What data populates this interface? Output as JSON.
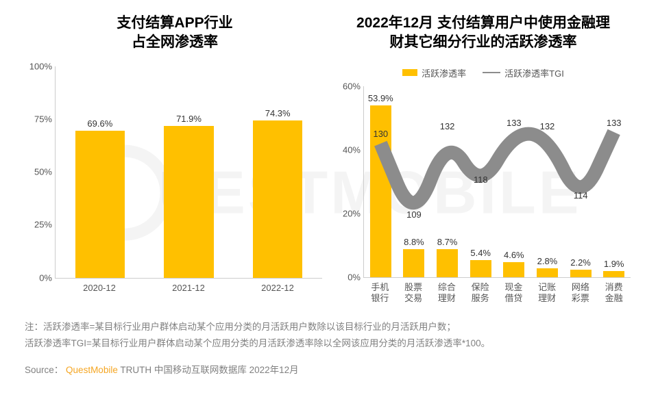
{
  "watermark": {
    "text": "UESTMOBILE"
  },
  "left_chart": {
    "type": "bar",
    "title": "支付结算APP行业\n占全网渗透率",
    "categories": [
      "2020-12",
      "2021-12",
      "2022-12"
    ],
    "values": [
      69.6,
      71.9,
      74.3
    ],
    "value_suffix": "%",
    "bar_color": "#ffc000",
    "bar_width_pct": 56,
    "ylim": [
      0,
      100
    ],
    "ytick_step": 25,
    "ytick_suffix": "%",
    "background_color": "#ffffff",
    "title_fontsize": 21,
    "label_fontsize": 13
  },
  "right_chart": {
    "type": "bar_line_combo",
    "title": "2022年12月 支付结算用户中使用金融理\n财其它细分行业的活跃渗透率",
    "legend_bar": "活跃渗透率",
    "legend_line": "活跃渗透率TGI",
    "categories": [
      "手机\n银行",
      "股票\n交易",
      "综合\n理财",
      "保险\n服务",
      "现金\n借贷",
      "记账\n理财",
      "网络\n彩票",
      "消费\n金融"
    ],
    "bar_values": [
      53.9,
      8.8,
      8.7,
      5.4,
      4.6,
      2.8,
      2.2,
      1.9
    ],
    "bar_suffix": "%",
    "bar_color": "#ffc000",
    "bar_width_pct": 64,
    "ylim": [
      0,
      60
    ],
    "ytick_step": 20,
    "ytick_suffix": "%",
    "line_values": [
      130,
      109,
      132,
      118,
      133,
      132,
      114,
      133
    ],
    "line_ylim": [
      95,
      145
    ],
    "line_color": "#8c8c8c",
    "line_width": 2.5,
    "background_color": "#ffffff",
    "title_fontsize": 21,
    "label_fontsize": 13
  },
  "footnotes": {
    "note_prefix": "注：",
    "line1": "活跃渗透率=某目标行业用户群体启动某个应用分类的月活跃用户数除以该目标行业的月活跃用户数；",
    "line2": "活跃渗透率TGI=某目标行业用户群体启动某个应用分类的月活跃渗透率除以全网该应用分类的月活跃渗透率*100。"
  },
  "source": {
    "prefix": "Source：",
    "brand": "QuestMobile",
    "rest": "TRUTH 中国移动互联网数据库 2022年12月"
  }
}
